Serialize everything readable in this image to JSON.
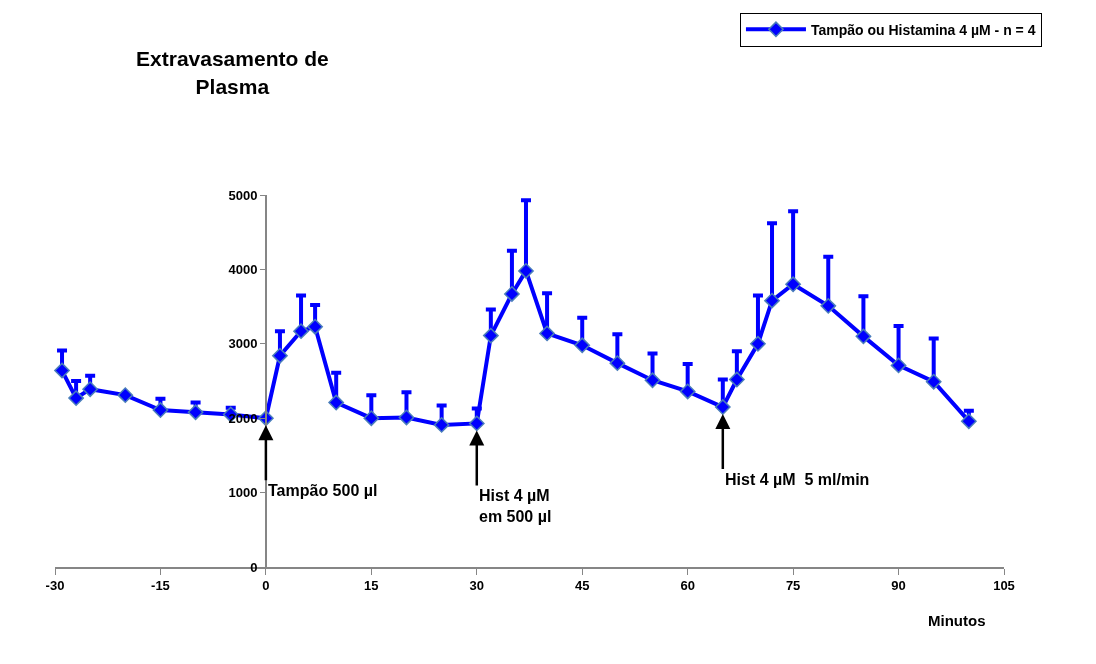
{
  "chart_data": {
    "type": "line",
    "title": "Extravasamento de\nPlasma",
    "xlabel": "Minutos",
    "x": [
      -29,
      -27,
      -25,
      -20,
      -15,
      -10,
      -5,
      0,
      2,
      5,
      7,
      10,
      15,
      20,
      25,
      30,
      32,
      35,
      37,
      40,
      45,
      50,
      55,
      60,
      65,
      67,
      70,
      72,
      75,
      80,
      85,
      90,
      95,
      100
    ],
    "series": [
      {
        "name": "Tampão ou Histamina 4 µM - n = 4",
        "color": "#0000ff",
        "values": [
          2640,
          2270,
          2390,
          2310,
          2110,
          2080,
          2050,
          2000,
          2840,
          3170,
          3230,
          2210,
          2000,
          2010,
          1910,
          1930,
          3110,
          3670,
          3980,
          3140,
          2980,
          2740,
          2510,
          2360,
          2150,
          2520,
          3000,
          3580,
          3800,
          3510,
          3100,
          2710,
          2490,
          1960
        ],
        "errors": [
          [
            2640,
            2910
          ],
          [
            2270,
            2500
          ],
          [
            2390,
            2570
          ],
          null,
          [
            2110,
            2260
          ],
          [
            2080,
            2210
          ],
          [
            2050,
            2140
          ],
          null,
          [
            2840,
            3170
          ],
          [
            3170,
            3650
          ],
          [
            3230,
            3520
          ],
          [
            2210,
            2610
          ],
          [
            2000,
            2310
          ],
          [
            2010,
            2350
          ],
          [
            1910,
            2170
          ],
          [
            1930,
            2130
          ],
          [
            3110,
            3460
          ],
          [
            3670,
            4250
          ],
          [
            3980,
            4930
          ],
          [
            3140,
            3680
          ],
          [
            2980,
            3350
          ],
          [
            2740,
            3130
          ],
          [
            2510,
            2870
          ],
          [
            2360,
            2730
          ],
          [
            2150,
            2520
          ],
          [
            2520,
            2900
          ],
          [
            3000,
            3650
          ],
          [
            3580,
            4620
          ],
          [
            3800,
            4780
          ],
          [
            3510,
            4170
          ],
          [
            3100,
            3640
          ],
          [
            2710,
            3240
          ],
          [
            2490,
            3070
          ],
          [
            1960,
            2100
          ]
        ]
      }
    ],
    "annotations": [
      {
        "text": "Tampão 500 µl",
        "x": 0,
        "y": 2000
      },
      {
        "text": "Hist 4 µM\nem 500 µl",
        "x": 30,
        "y": 1930
      },
      {
        "text": "Hist 4 µM  5 ml/min",
        "x": 65,
        "y": 2150
      }
    ],
    "xlim": [
      -30,
      105
    ],
    "ylim": [
      0,
      5000
    ],
    "xticks": [
      -30,
      -15,
      0,
      15,
      30,
      45,
      60,
      75,
      90,
      105
    ],
    "yticks": [
      0,
      1000,
      2000,
      3000,
      4000,
      5000
    ],
    "legend": "top right",
    "marker": "diamond",
    "line_style": "solid"
  }
}
